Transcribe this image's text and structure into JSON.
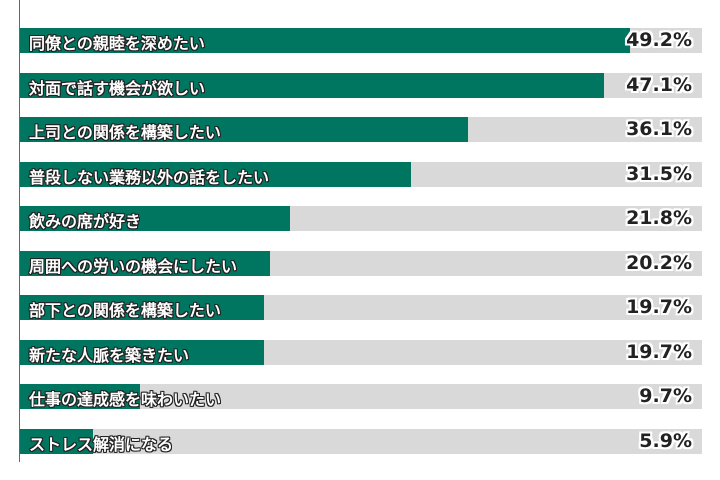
{
  "chart_data": {
    "type": "bar",
    "orientation": "horizontal",
    "categories": [
      "同僚との親睦を深めたい",
      "対面で話す機会が欲しい",
      "上司との関係を構築したい",
      "普段しない業務以外の話をしたい",
      "飲みの席が好き",
      "周囲への労いの機会にしたい",
      "部下との関係を構築したい",
      "新たな人脈を築きたい",
      "仕事の達成感を味わいたい",
      "ストレス解消になる"
    ],
    "values": [
      49.2,
      47.1,
      36.1,
      31.5,
      21.8,
      20.2,
      19.7,
      19.7,
      9.7,
      5.9
    ],
    "value_labels": [
      "49.2%",
      "47.1%",
      "36.1%",
      "31.5%",
      "21.8%",
      "20.2%",
      "19.7%",
      "19.7%",
      "9.7%",
      "5.9%"
    ],
    "xlim": [
      0,
      55
    ],
    "grid": false,
    "colors": {
      "bar": "#007560",
      "track": "#d9d9d9"
    }
  }
}
